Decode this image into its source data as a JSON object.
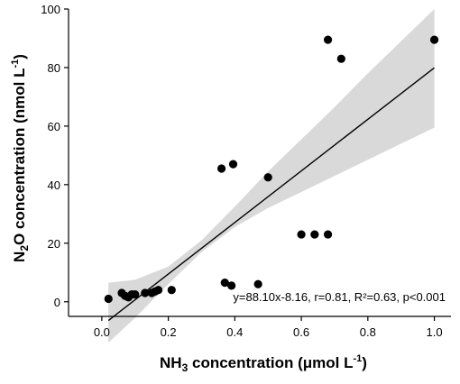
{
  "chart_data": {
    "type": "scatter",
    "title": "",
    "xlabel": {
      "pre": "NH",
      "sub": "3",
      "post": " concentration (μmol L",
      "sup": "-1",
      "close": ")"
    },
    "ylabel": {
      "pre": "N",
      "sub": "2",
      "post": "O concentration (nmol L",
      "sup": "-1",
      "close": ")"
    },
    "xlim": [
      -0.1,
      1.05
    ],
    "ylim": [
      -5,
      100
    ],
    "x_ticks": [
      0.0,
      0.2,
      0.4,
      0.6,
      0.8,
      1.0
    ],
    "x_tick_labels": [
      "0.0",
      "0.2",
      "0.4",
      "0.6",
      "0.8",
      "1.0"
    ],
    "y_ticks": [
      0,
      20,
      40,
      60,
      80,
      100
    ],
    "y_tick_labels": [
      "0",
      "20",
      "40",
      "60",
      "80",
      "100"
    ],
    "grid": false,
    "points": [
      {
        "x": 0.02,
        "y": 1.0
      },
      {
        "x": 0.06,
        "y": 3.0
      },
      {
        "x": 0.07,
        "y": 2.0
      },
      {
        "x": 0.08,
        "y": 1.5
      },
      {
        "x": 0.09,
        "y": 2.5
      },
      {
        "x": 0.1,
        "y": 2.5
      },
      {
        "x": 0.13,
        "y": 3.0
      },
      {
        "x": 0.15,
        "y": 3.0
      },
      {
        "x": 0.16,
        "y": 3.5
      },
      {
        "x": 0.17,
        "y": 4.0
      },
      {
        "x": 0.21,
        "y": 4.0
      },
      {
        "x": 0.36,
        "y": 45.5
      },
      {
        "x": 0.37,
        "y": 6.5
      },
      {
        "x": 0.39,
        "y": 5.5
      },
      {
        "x": 0.395,
        "y": 47.0
      },
      {
        "x": 0.47,
        "y": 6.0
      },
      {
        "x": 0.5,
        "y": 42.5
      },
      {
        "x": 0.6,
        "y": 23.0
      },
      {
        "x": 0.64,
        "y": 23.0
      },
      {
        "x": 0.68,
        "y": 23.0
      },
      {
        "x": 0.68,
        "y": 89.5
      },
      {
        "x": 0.72,
        "y": 83.0
      },
      {
        "x": 1.0,
        "y": 89.5
      }
    ],
    "fit": {
      "slope": 88.1,
      "intercept": -8.16,
      "x_range": [
        0.02,
        1.0
      ]
    },
    "confidence_band": {
      "x": [
        0.02,
        0.1,
        0.2,
        0.3,
        0.4,
        0.5,
        0.6,
        0.7,
        0.8,
        0.9,
        1.0
      ],
      "lower": [
        -14.0,
        -5.5,
        6.0,
        17.0,
        25.5,
        32.0,
        37.5,
        43.0,
        48.5,
        54.0,
        59.5
      ],
      "upper": [
        6.5,
        7.5,
        12.0,
        21.0,
        32.5,
        44.5,
        55.5,
        66.5,
        78.0,
        89.0,
        100.0
      ]
    },
    "annotation": "y=88.10x-8.16, r=0.81, R²=0.63, p<0.001",
    "colors": {
      "points": "#000000",
      "fit_line": "#000000",
      "band": "#d9d9d9",
      "axes": "#000000"
    }
  }
}
